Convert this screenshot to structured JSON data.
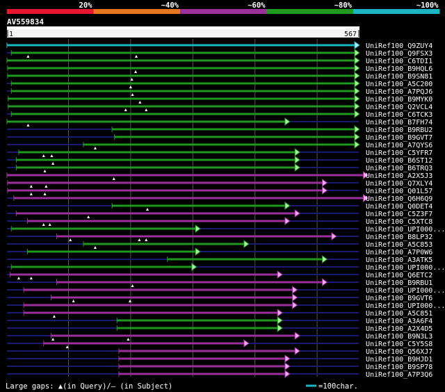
{
  "chart_data": {
    "type": "alignment-overview",
    "query": {
      "name": "AV559834",
      "length": 567,
      "ruler_start": "1",
      "ruler_end": "567"
    },
    "identity_legend": [
      {
        "label": "20%",
        "color": "#e8162e"
      },
      {
        "label": "~40%",
        "color": "#e8761c"
      },
      {
        "label": "~60%",
        "color": "#9b2f9b"
      },
      {
        "label": "~80%",
        "color": "#1e9a1e"
      },
      {
        "label": "~100%",
        "color": "#1ab6c2"
      }
    ],
    "footer": {
      "gaps_text": "Large gaps: ▲(in Query)/– (in Subject)",
      "scale_text": "=100char.",
      "scale_color": "#1ab6c2"
    },
    "hits": [
      {
        "name": "UniRef100_Q9ZUY4",
        "start": 1,
        "end": 567,
        "color": "#1ab6c2",
        "arrow": "#b0eef4",
        "tris": []
      },
      {
        "name": "UniRef100_Q9FSX3",
        "start": 8,
        "end": 567,
        "color": "#1e9a1e",
        "arrow": "#a8f0a0",
        "tris": [
          35,
          209
        ]
      },
      {
        "name": "UniRef100_C6TDI1",
        "start": 1,
        "end": 567,
        "color": "#1e9a1e",
        "arrow": "#a8f0a0",
        "tris": []
      },
      {
        "name": "UniRef100_B9HQL6",
        "start": 2,
        "end": 567,
        "color": "#1e9a1e",
        "arrow": "#a8f0a0",
        "tris": [
          208
        ]
      },
      {
        "name": "UniRef100_B9SN81",
        "start": 2,
        "end": 567,
        "color": "#1e9a1e",
        "arrow": "#a8f0a0",
        "tris": [
          202
        ]
      },
      {
        "name": "UniRef100_A5C200",
        "start": 8,
        "end": 567,
        "color": "#1e9a1e",
        "arrow": "#a8f0a0",
        "tris": [
          200
        ]
      },
      {
        "name": "UniRef100_A7PQJ6",
        "start": 8,
        "end": 567,
        "color": "#1e9a1e",
        "arrow": "#a8f0a0",
        "tris": [
          203
        ]
      },
      {
        "name": "UniRef100_B9MYK0",
        "start": 3,
        "end": 567,
        "color": "#1e9a1e",
        "arrow": "#a8f0a0",
        "tris": [
          215
        ]
      },
      {
        "name": "UniRef100_Q2VCL4",
        "start": 3,
        "end": 567,
        "color": "#1e9a1e",
        "arrow": "#a8f0a0",
        "tris": [
          192,
          225
        ]
      },
      {
        "name": "UniRef100_C6TCK3",
        "start": 8,
        "end": 567,
        "color": "#1e9a1e",
        "arrow": "#a8f0a0",
        "tris": []
      },
      {
        "name": "UniRef100_B7FH74",
        "start": 1,
        "end": 455,
        "color": "#1e9a1e",
        "arrow": "#a8f0a0",
        "tris": [
          35
        ]
      },
      {
        "name": "UniRef100_B9RBU2",
        "start": 170,
        "end": 567,
        "color": "#1e9a1e",
        "arrow": "#a8f0a0",
        "tris": []
      },
      {
        "name": "UniRef100_B9GVT7",
        "start": 174,
        "end": 567,
        "color": "#1e9a1e",
        "arrow": "#a8f0a0",
        "tris": []
      },
      {
        "name": "UniRef100_A7QYS6",
        "start": 124,
        "end": 567,
        "color": "#1e9a1e",
        "arrow": "#a8f0a0",
        "tris": [
          143
        ]
      },
      {
        "name": "UniRef100_C5YFR7",
        "start": 20,
        "end": 471,
        "color": "#1e9a1e",
        "arrow": "#a8f0a0",
        "tris": [
          60,
          73
        ]
      },
      {
        "name": "UniRef100_B6ST12",
        "start": 16,
        "end": 471,
        "color": "#1e9a1e",
        "arrow": "#a8f0a0",
        "tris": [
          75
        ]
      },
      {
        "name": "UniRef100_B6TRQ3",
        "start": 16,
        "end": 471,
        "color": "#1e9a1e",
        "arrow": "#a8f0a0",
        "tris": [
          62
        ]
      },
      {
        "name": "UniRef100_A2X5J3",
        "start": 1,
        "end": 581,
        "color": "#9b2f9b",
        "arrow": "#f0a8f0",
        "tris": [
          173
        ]
      },
      {
        "name": "UniRef100_Q7XLY4",
        "start": 2,
        "end": 515,
        "color": "#9b2f9b",
        "arrow": "#f0a8f0",
        "tris": [
          40,
          64
        ]
      },
      {
        "name": "UniRef100_Q01L57",
        "start": 2,
        "end": 515,
        "color": "#9b2f9b",
        "arrow": "#f0a8f0",
        "tris": [
          40,
          62
        ]
      },
      {
        "name": "UniRef100_Q6H6Q9",
        "start": 12,
        "end": 581,
        "color": "#9b2f9b",
        "arrow": "#f0a8f0",
        "tris": []
      },
      {
        "name": "UniRef100_Q0DET4",
        "start": 170,
        "end": 455,
        "color": "#1e9a1e",
        "arrow": "#a8f0a0",
        "tris": [
          227
        ]
      },
      {
        "name": "UniRef100_C5Z3F7",
        "start": 16,
        "end": 471,
        "color": "#9b2f9b",
        "arrow": "#f0a8f0",
        "tris": [
          132
        ]
      },
      {
        "name": "UniRef100_C5XTC8",
        "start": 34,
        "end": 455,
        "color": "#9b2f9b",
        "arrow": "#f0a8f0",
        "tris": [
          60,
          70
        ]
      },
      {
        "name": "UniRef100_UPI000...",
        "start": 8,
        "end": 311,
        "color": "#1e9a1e",
        "arrow": "#a8f0a0",
        "tris": []
      },
      {
        "name": "UniRef100_B8LP32",
        "start": 81,
        "end": 530,
        "color": "#9b2f9b",
        "arrow": "#f0a8f0",
        "tris": [
          103,
          214,
          225
        ]
      },
      {
        "name": "UniRef100_A5C853",
        "start": 124,
        "end": 389,
        "color": "#1e9a1e",
        "arrow": "#a8f0a0",
        "tris": [
          143
        ]
      },
      {
        "name": "UniRef100_A7P0W6",
        "start": 34,
        "end": 311,
        "color": "#1e9a1e",
        "arrow": "#a8f0a0",
        "tris": []
      },
      {
        "name": "UniRef100_A3ATK5",
        "start": 259,
        "end": 515,
        "color": "#1e9a1e",
        "arrow": "#a8f0a0",
        "tris": []
      },
      {
        "name": "UniRef100_UPI000...",
        "start": 8,
        "end": 305,
        "color": "#1e9a1e",
        "arrow": "#a8f0a0",
        "tris": []
      },
      {
        "name": "UniRef100_Q6ETC2",
        "start": 6,
        "end": 443,
        "color": "#9b2f9b",
        "arrow": "#f0a8f0",
        "tris": [
          20,
          40
        ]
      },
      {
        "name": "UniRef100_B9RBU1",
        "start": 81,
        "end": 515,
        "color": "#9b2f9b",
        "arrow": "#f0a8f0",
        "tris": [
          203
        ]
      },
      {
        "name": "UniRef100_UPI000...",
        "start": 28,
        "end": 467,
        "color": "#9b2f9b",
        "arrow": "#f0a8f0",
        "tris": []
      },
      {
        "name": "UniRef100_B9GVT6",
        "start": 72,
        "end": 467,
        "color": "#9b2f9b",
        "arrow": "#f0a8f0",
        "tris": [
          108,
          199
        ]
      },
      {
        "name": "UniRef100_UPI000...",
        "start": 28,
        "end": 467,
        "color": "#9b2f9b",
        "arrow": "#f0a8f0",
        "tris": []
      },
      {
        "name": "UniRef100_A5C851",
        "start": 28,
        "end": 443,
        "color": "#9b2f9b",
        "arrow": "#f0a8f0",
        "tris": [
          77
        ]
      },
      {
        "name": "UniRef100_A3A6F4",
        "start": 178,
        "end": 443,
        "color": "#1e9a1e",
        "arrow": "#a8f0a0",
        "tris": []
      },
      {
        "name": "UniRef100_A2X4D5",
        "start": 178,
        "end": 443,
        "color": "#1e9a1e",
        "arrow": "#a8f0a0",
        "tris": []
      },
      {
        "name": "UniRef100_B9N3L3",
        "start": 72,
        "end": 471,
        "color": "#9b2f9b",
        "arrow": "#f0a8f0",
        "tris": [
          75,
          196
        ]
      },
      {
        "name": "UniRef100_C5Y5S8",
        "start": 60,
        "end": 389,
        "color": "#9b2f9b",
        "arrow": "#f0a8f0",
        "tris": [
          98
        ]
      },
      {
        "name": "UniRef100_Q56XJ7",
        "start": 181,
        "end": 471,
        "color": "#9b2f9b",
        "arrow": "#f0a8f0",
        "tris": []
      },
      {
        "name": "UniRef100_B9HJD1",
        "start": 181,
        "end": 455,
        "color": "#9b2f9b",
        "arrow": "#f0a8f0",
        "tris": []
      },
      {
        "name": "UniRef100_B9SP78",
        "start": 181,
        "end": 455,
        "color": "#9b2f9b",
        "arrow": "#f0a8f0",
        "tris": []
      },
      {
        "name": "UniRef100_A7P3Q6",
        "start": 181,
        "end": 455,
        "color": "#9b2f9b",
        "arrow": "#f0a8f0",
        "tris": []
      }
    ]
  }
}
